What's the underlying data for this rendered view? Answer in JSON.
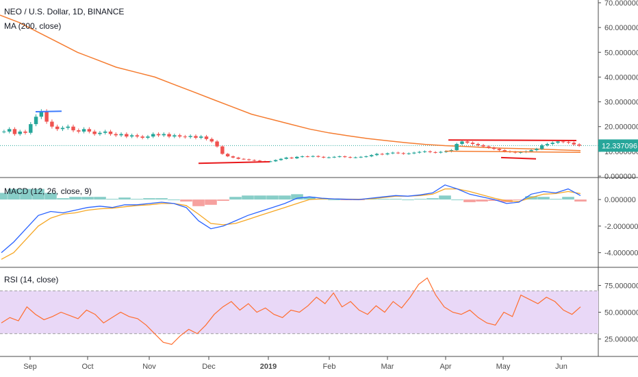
{
  "chart_data": [
    {
      "type": "candlestick",
      "title": "NEO / U.S. Dollar, 1D, BINANCE",
      "indicator": "MA (200, close)",
      "yticks": [
        "70.000000",
        "60.000000",
        "50.000000",
        "40.000000",
        "30.000000",
        "20.000000",
        "10.000000",
        "0.000000"
      ],
      "ylim": [
        0,
        70
      ],
      "price_label": "12.337096",
      "price": 12.337096,
      "ma200": [
        [
          0,
          65
        ],
        [
          10,
          62
        ],
        [
          20,
          58
        ],
        [
          30,
          54
        ],
        [
          40,
          50
        ],
        [
          50,
          47
        ],
        [
          60,
          44
        ],
        [
          70,
          42
        ],
        [
          80,
          40
        ],
        [
          90,
          37
        ],
        [
          100,
          34
        ],
        [
          110,
          31
        ],
        [
          120,
          28
        ],
        [
          130,
          25
        ],
        [
          140,
          23
        ],
        [
          150,
          21
        ],
        [
          160,
          19
        ],
        [
          170,
          17.5
        ],
        [
          180,
          16.3
        ],
        [
          190,
          15.2
        ],
        [
          200,
          14.3
        ],
        [
          210,
          13.5
        ],
        [
          220,
          12.8
        ],
        [
          230,
          12.3
        ],
        [
          240,
          12
        ],
        [
          250,
          11.6
        ],
        [
          260,
          11.3
        ],
        [
          270,
          11.1
        ],
        [
          280,
          10.9
        ],
        [
          290,
          10.6
        ],
        [
          300,
          10.3
        ]
      ],
      "closes": [
        18,
        19,
        17,
        18,
        17.5,
        21,
        24,
        26,
        22,
        20,
        19,
        19.5,
        20,
        18.5,
        18,
        19,
        18,
        17,
        17.5,
        18,
        17,
        16.5,
        17,
        16,
        16.5,
        16,
        15.5,
        16,
        17,
        16.5,
        17,
        16,
        16.5,
        16,
        15.8,
        16.2,
        15.5,
        16,
        15,
        14,
        12,
        9,
        8,
        7.5,
        7,
        6.8,
        6.5,
        6.3,
        6,
        5.8,
        6,
        6.5,
        7,
        7.5,
        7.2,
        7.8,
        8,
        7.9,
        8.1,
        7.8,
        7.5,
        7.6,
        7.8,
        8,
        7.7,
        7.5,
        7.6,
        7.8,
        8,
        8.5,
        9,
        8.8,
        9.2,
        9.5,
        9.3,
        9,
        9.2,
        9.5,
        9.8,
        10,
        9.7,
        9.5,
        9.8,
        10,
        10.5,
        13,
        14,
        13.5,
        13,
        12.5,
        12,
        11.5,
        11,
        10.5,
        10,
        9.8,
        9.5,
        9.7,
        10,
        10.5,
        11,
        12.5,
        13,
        13.5,
        14,
        13.8,
        13.5,
        12.8,
        12.3
      ]
    },
    {
      "type": "line",
      "title": "MACD (12, 26, close, 9)",
      "yticks": [
        "0.000000",
        "-2.000000",
        "-4.000000"
      ],
      "ylim": [
        -5,
        1.5
      ],
      "macd": [
        -4,
        -3.2,
        -2.2,
        -1.2,
        -0.9,
        -1,
        -0.8,
        -0.6,
        -0.5,
        -0.6,
        -0.4,
        -0.4,
        -0.3,
        -0.2,
        -0.3,
        -0.6,
        -1.6,
        -2.2,
        -2,
        -1.6,
        -1.2,
        -0.9,
        -0.6,
        -0.3,
        0.1,
        0.2,
        0.1,
        0.05,
        0.02,
        0,
        0.1,
        0.2,
        0.3,
        0.25,
        0.35,
        0.5,
        1.1,
        0.8,
        0.4,
        0.2,
        0,
        -0.3,
        -0.2,
        0.4,
        0.6,
        0.5,
        0.8,
        0.3
      ],
      "signal": [
        -4.5,
        -4,
        -3,
        -2,
        -1.4,
        -1.1,
        -1,
        -0.8,
        -0.7,
        -0.65,
        -0.55,
        -0.45,
        -0.4,
        -0.3,
        -0.3,
        -0.45,
        -1.1,
        -1.8,
        -1.9,
        -1.8,
        -1.5,
        -1.2,
        -0.9,
        -0.6,
        -0.3,
        0,
        0.05,
        0.05,
        0.03,
        0.02,
        0.05,
        0.15,
        0.25,
        0.25,
        0.3,
        0.4,
        0.8,
        0.8,
        0.6,
        0.35,
        0.1,
        -0.1,
        -0.15,
        0.15,
        0.4,
        0.45,
        0.6,
        0.45
      ],
      "histogram": [
        0.5,
        0.8,
        0.8,
        0.8,
        0.5,
        0.1,
        0.2,
        0.2,
        0.2,
        0.05,
        0.15,
        0.05,
        0.1,
        0.1,
        0,
        -0.15,
        -0.5,
        -0.4,
        -0.1,
        0.2,
        0.3,
        0.3,
        0.3,
        0.3,
        0.4,
        0.2,
        0.05,
        0,
        -0.01,
        -0.02,
        0.05,
        0.05,
        0.05,
        0,
        0.05,
        0.1,
        0.3,
        0,
        -0.2,
        -0.15,
        -0.1,
        -0.2,
        -0.05,
        0.25,
        0.2,
        0.05,
        0.2,
        -0.15
      ]
    },
    {
      "type": "line",
      "title": "RSI (14, close)",
      "yticks": [
        "75.000000",
        "50.000000",
        "25.000000"
      ],
      "ylim": [
        10,
        90
      ],
      "band": [
        30,
        70
      ],
      "rsi": [
        40,
        45,
        42,
        55,
        48,
        43,
        46,
        50,
        47,
        44,
        52,
        48,
        40,
        45,
        50,
        46,
        44,
        38,
        30,
        22,
        20,
        28,
        34,
        30,
        38,
        48,
        55,
        60,
        52,
        58,
        50,
        54,
        48,
        45,
        52,
        50,
        56,
        64,
        58,
        68,
        55,
        60,
        52,
        48,
        56,
        50,
        60,
        54,
        64,
        76,
        82,
        66,
        55,
        50,
        48,
        52,
        45,
        40,
        38,
        50,
        46,
        66,
        62,
        58,
        64,
        60,
        52,
        48,
        55
      ]
    },
    {
      "type": "axis",
      "xticks": [
        "Sep",
        "Oct",
        "Nov",
        "Dec",
        "2019",
        "Feb",
        "Mar",
        "Apr",
        "May",
        "Jun"
      ]
    }
  ],
  "colors": {
    "up": "#26a69a",
    "down": "#ef5350",
    "ma": "#f57c30",
    "macd": "#2962ff",
    "signal": "#f5a623",
    "rsi": "#ff6d2e",
    "rsi_band": "#e9d8f7",
    "blue_line": "#3d7bfd",
    "red_line": "#e8171a",
    "price_tag": "#26a69a"
  }
}
